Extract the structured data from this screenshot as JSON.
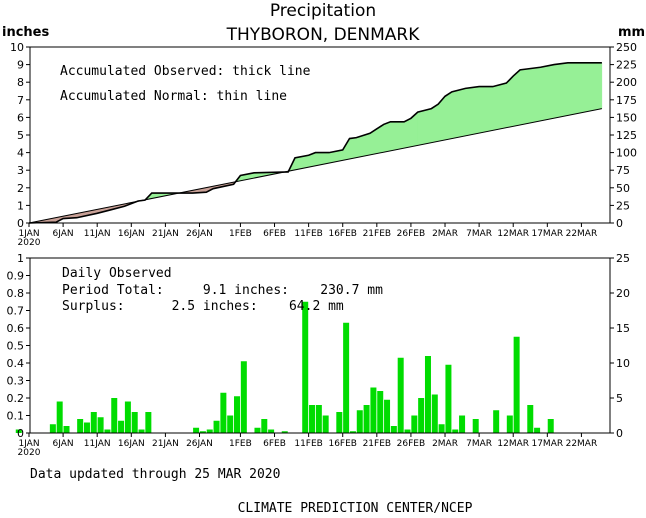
{
  "header": {
    "title": "Precipitation",
    "subtitle": "THYBORON, DENMARK",
    "left_unit": "inches",
    "right_unit": "mm"
  },
  "chart_data": [
    {
      "type": "area",
      "name": "accumulated",
      "notes": [
        "Accumulated Observed: thick line",
        "Accumulated Normal: thin line"
      ],
      "x_tick_labels": [
        "1JAN",
        "6JAN",
        "11JAN",
        "16JAN",
        "21JAN",
        "26JAN",
        "1FEB",
        "6FEB",
        "11FEB",
        "16FEB",
        "21FEB",
        "26FEB",
        "2MAR",
        "7MAR",
        "12MAR",
        "17MAR",
        "22MAR"
      ],
      "x_tick_days": [
        0,
        5,
        10,
        15,
        20,
        25,
        31,
        36,
        41,
        46,
        51,
        56,
        61,
        66,
        71,
        76,
        81
      ],
      "x_sub_label": "2020",
      "x_range_days": [
        0,
        84
      ],
      "ylim_inches": [
        0,
        10
      ],
      "y_ticks_inches": [
        "0",
        "1",
        "2",
        "3",
        "4",
        "5",
        "6",
        "7",
        "8",
        "9",
        "10"
      ],
      "ylim_mm": [
        0,
        250
      ],
      "y_ticks_mm": [
        "0",
        "25",
        "50",
        "75",
        "100",
        "125",
        "150",
        "175",
        "200",
        "225",
        "250"
      ],
      "normal_line": {
        "x": [
          0,
          84
        ],
        "y": [
          0,
          6.5
        ]
      },
      "observed_line": {
        "x": [
          0,
          4,
          5,
          7,
          10,
          12,
          14,
          16,
          17,
          18,
          20,
          24,
          26,
          27,
          30,
          31,
          33,
          38,
          39,
          41,
          42,
          44,
          46,
          47,
          48,
          50,
          51,
          52,
          53,
          55,
          56,
          57,
          58,
          59,
          60,
          61,
          62,
          63,
          64,
          66,
          68,
          70,
          71,
          72,
          73,
          75,
          77,
          78,
          79,
          81,
          84
        ],
        "y": [
          0,
          0.05,
          0.25,
          0.3,
          0.55,
          0.75,
          0.95,
          1.25,
          1.3,
          1.7,
          1.7,
          1.7,
          1.75,
          1.95,
          2.2,
          2.7,
          2.85,
          2.9,
          3.7,
          3.85,
          4.0,
          4.0,
          4.15,
          4.8,
          4.85,
          5.1,
          5.35,
          5.6,
          5.75,
          5.75,
          5.95,
          6.3,
          6.4,
          6.5,
          6.75,
          7.2,
          7.45,
          7.55,
          7.65,
          7.75,
          7.75,
          7.95,
          8.35,
          8.7,
          8.75,
          8.85,
          9.0,
          9.05,
          9.1,
          9.1,
          9.1
        ]
      },
      "colors": {
        "deficit": "#c8a096",
        "surplus": "#96f096"
      }
    },
    {
      "type": "bar",
      "name": "daily",
      "notes": [
        "Daily Observed",
        "Period Total:     9.1 inches:    230.7 mm",
        "Surplus:      2.5 inches:    64.2 mm"
      ],
      "ylim_inches": [
        0,
        1
      ],
      "y_ticks_inches": [
        "0",
        "0.1",
        "0.2",
        "0.3",
        "0.4",
        "0.5",
        "0.6",
        "0.7",
        "0.8",
        "0.9",
        "1"
      ],
      "ylim_mm": [
        0,
        25
      ],
      "y_ticks_mm": [
        "0",
        "5",
        "10",
        "15",
        "20",
        "25"
      ],
      "days": [
        -2,
        3,
        4,
        5,
        7,
        8,
        9,
        10,
        11,
        12,
        13,
        14,
        15,
        16,
        17,
        24,
        25,
        26,
        27,
        28,
        29,
        30,
        31,
        33,
        34,
        35,
        37,
        40,
        41,
        42,
        43,
        45,
        46,
        47,
        48,
        49,
        50,
        51,
        52,
        53,
        54,
        55,
        56,
        57,
        58,
        59,
        60,
        61,
        62,
        63,
        65,
        68,
        70,
        71,
        73,
        74,
        76
      ],
      "values": [
        0.02,
        0.05,
        0.18,
        0.04,
        0.08,
        0.06,
        0.12,
        0.09,
        0.02,
        0.2,
        0.07,
        0.18,
        0.12,
        0.02,
        0.12,
        0.03,
        0.01,
        0.02,
        0.07,
        0.23,
        0.1,
        0.21,
        0.41,
        0.03,
        0.08,
        0.02,
        0.01,
        0.75,
        0.16,
        0.16,
        0.1,
        0.12,
        0.63,
        0.01,
        0.13,
        0.16,
        0.26,
        0.24,
        0.19,
        0.04,
        0.43,
        0.02,
        0.1,
        0.2,
        0.44,
        0.22,
        0.05,
        0.39,
        0.02,
        0.1,
        0.08,
        0.13,
        0.1,
        0.55,
        0.16,
        0.03,
        0.08
      ],
      "color": "#00dc00"
    }
  ],
  "footer": {
    "updated": "Data updated through 25 MAR 2020",
    "credit": "CLIMATE PREDICTION CENTER/NCEP"
  }
}
